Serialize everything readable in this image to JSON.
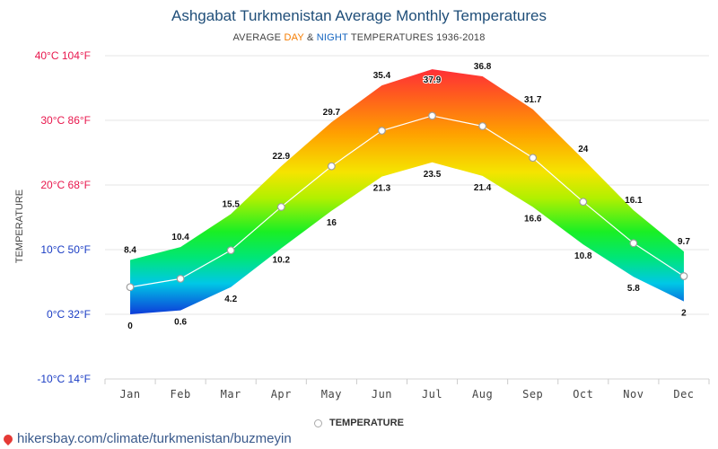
{
  "header": {
    "title": "Ashgabat Turkmenistan Average Monthly Temperatures",
    "subtitle_prefix": "AVERAGE ",
    "subtitle_day": "DAY",
    "subtitle_amp": " & ",
    "subtitle_night": "NIGHT",
    "subtitle_suffix": " TEMPERATURES 1936-2018"
  },
  "legend": {
    "label": "TEMPERATURE"
  },
  "footer": {
    "url": "hikersbay.com/climate/turkmenistan/buzmeyin"
  },
  "colors": {
    "title": "#1f4e79",
    "day": "#f57c00",
    "night": "#1565c0",
    "ytick_hot": "#e8174d",
    "ytick_cold": "#1a3cc4",
    "mean_line": "#ffffff"
  },
  "chart_data": {
    "type": "area",
    "ylabel": "TEMPERATURE",
    "ylim": [
      -10,
      40
    ],
    "y_ticks": [
      {
        "value": 40,
        "label": "40°C 104°F"
      },
      {
        "value": 30,
        "label": "30°C 86°F"
      },
      {
        "value": 20,
        "label": "20°C 68°F"
      },
      {
        "value": 10,
        "label": "10°C 50°F"
      },
      {
        "value": 0,
        "label": "0°C 32°F"
      },
      {
        "value": -10,
        "label": "-10°C 14°F"
      }
    ],
    "categories": [
      "Jan",
      "Feb",
      "Mar",
      "Apr",
      "May",
      "Jun",
      "Jul",
      "Aug",
      "Sep",
      "Oct",
      "Nov",
      "Dec"
    ],
    "grid": true,
    "legend_position": "bottom-center",
    "series": [
      {
        "name": "DAY",
        "values": [
          8.4,
          10.4,
          15.5,
          22.9,
          29.7,
          35.4,
          37.9,
          36.8,
          31.7,
          24,
          16.1,
          9.7
        ],
        "labels": [
          "8.4",
          "10.4",
          "15.5",
          "22.9",
          "29.7",
          "35.4",
          "37.9",
          "36.8",
          "31.7",
          "24",
          "16.1",
          "9.7"
        ]
      },
      {
        "name": "NIGHT",
        "values": [
          0,
          0.6,
          4.2,
          10.2,
          16,
          21.3,
          23.5,
          21.4,
          16.6,
          10.8,
          5.8,
          2
        ],
        "labels": [
          "0",
          "0.6",
          "4.2",
          "10.2",
          "16",
          "21.3",
          "23.5",
          "21.4",
          "16.6",
          "10.8",
          "5.8",
          "2"
        ]
      },
      {
        "name": "TEMPERATURE",
        "values": [
          4.2,
          5.5,
          9.9,
          16.6,
          22.9,
          28.4,
          30.7,
          29.1,
          24.2,
          17.4,
          11,
          5.9
        ]
      }
    ]
  }
}
